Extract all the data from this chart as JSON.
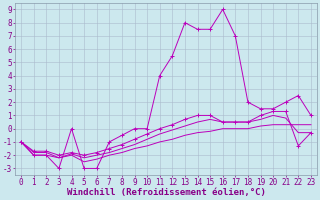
{
  "background_color": "#cce8ee",
  "grid_color": "#aabbcc",
  "line_color": "#bb00bb",
  "xlabel": "Windchill (Refroidissement éolien,°C)",
  "xlabel_fontsize": 6.5,
  "tick_fontsize": 5.5,
  "xlim": [
    -0.5,
    23.5
  ],
  "ylim": [
    -3.5,
    9.5
  ],
  "xticks": [
    0,
    1,
    2,
    3,
    4,
    5,
    6,
    7,
    8,
    9,
    10,
    11,
    12,
    13,
    14,
    15,
    16,
    17,
    18,
    19,
    20,
    21,
    22,
    23
  ],
  "yticks": [
    -3,
    -2,
    -1,
    0,
    1,
    2,
    3,
    4,
    5,
    6,
    7,
    8,
    9
  ],
  "line1_x": [
    0,
    1,
    2,
    3,
    4,
    5,
    6,
    7,
    8,
    9,
    10,
    11,
    12,
    13,
    14,
    15,
    16,
    17,
    18,
    19,
    20,
    21,
    22,
    23
  ],
  "line1_y": [
    -1,
    -2,
    -2,
    -3,
    0,
    -3,
    -3,
    -1,
    -0.5,
    0,
    0,
    4,
    5.5,
    8,
    7.5,
    7.5,
    9,
    7,
    2,
    1.5,
    1.5,
    2,
    2.5,
    1
  ],
  "line2_x": [
    0,
    1,
    2,
    3,
    4,
    5,
    6,
    7,
    8,
    9,
    10,
    11,
    12,
    13,
    14,
    15,
    16,
    17,
    18,
    19,
    20,
    21,
    22,
    23
  ],
  "line2_y": [
    -1,
    -2,
    -2,
    -2.2,
    -2.0,
    -2.5,
    -2.3,
    -2.0,
    -1.8,
    -1.5,
    -1.3,
    -1.0,
    -0.8,
    -0.5,
    -0.3,
    -0.2,
    0.0,
    0.0,
    0.0,
    0.2,
    0.3,
    0.3,
    0.3,
    0.3
  ],
  "line3_x": [
    0,
    1,
    2,
    3,
    4,
    5,
    6,
    7,
    8,
    9,
    10,
    11,
    12,
    13,
    14,
    15,
    16,
    17,
    18,
    19,
    20,
    21,
    22,
    23
  ],
  "line3_y": [
    -1,
    -1.8,
    -1.8,
    -2.2,
    -1.9,
    -2.2,
    -2.0,
    -1.8,
    -1.5,
    -1.2,
    -0.8,
    -0.4,
    -0.1,
    0.2,
    0.5,
    0.7,
    0.5,
    0.5,
    0.5,
    0.7,
    1.0,
    0.8,
    -0.3,
    -0.3
  ],
  "line4_x": [
    0,
    1,
    2,
    3,
    4,
    5,
    6,
    7,
    8,
    9,
    10,
    11,
    12,
    13,
    14,
    15,
    16,
    17,
    18,
    19,
    20,
    21,
    22,
    23
  ],
  "line4_y": [
    -1,
    -1.7,
    -1.7,
    -2.0,
    -1.8,
    -2.0,
    -1.8,
    -1.5,
    -1.2,
    -0.8,
    -0.4,
    0.0,
    0.3,
    0.7,
    1.0,
    1.0,
    0.5,
    0.5,
    0.5,
    1.0,
    1.3,
    1.3,
    -1.3,
    -0.3
  ]
}
